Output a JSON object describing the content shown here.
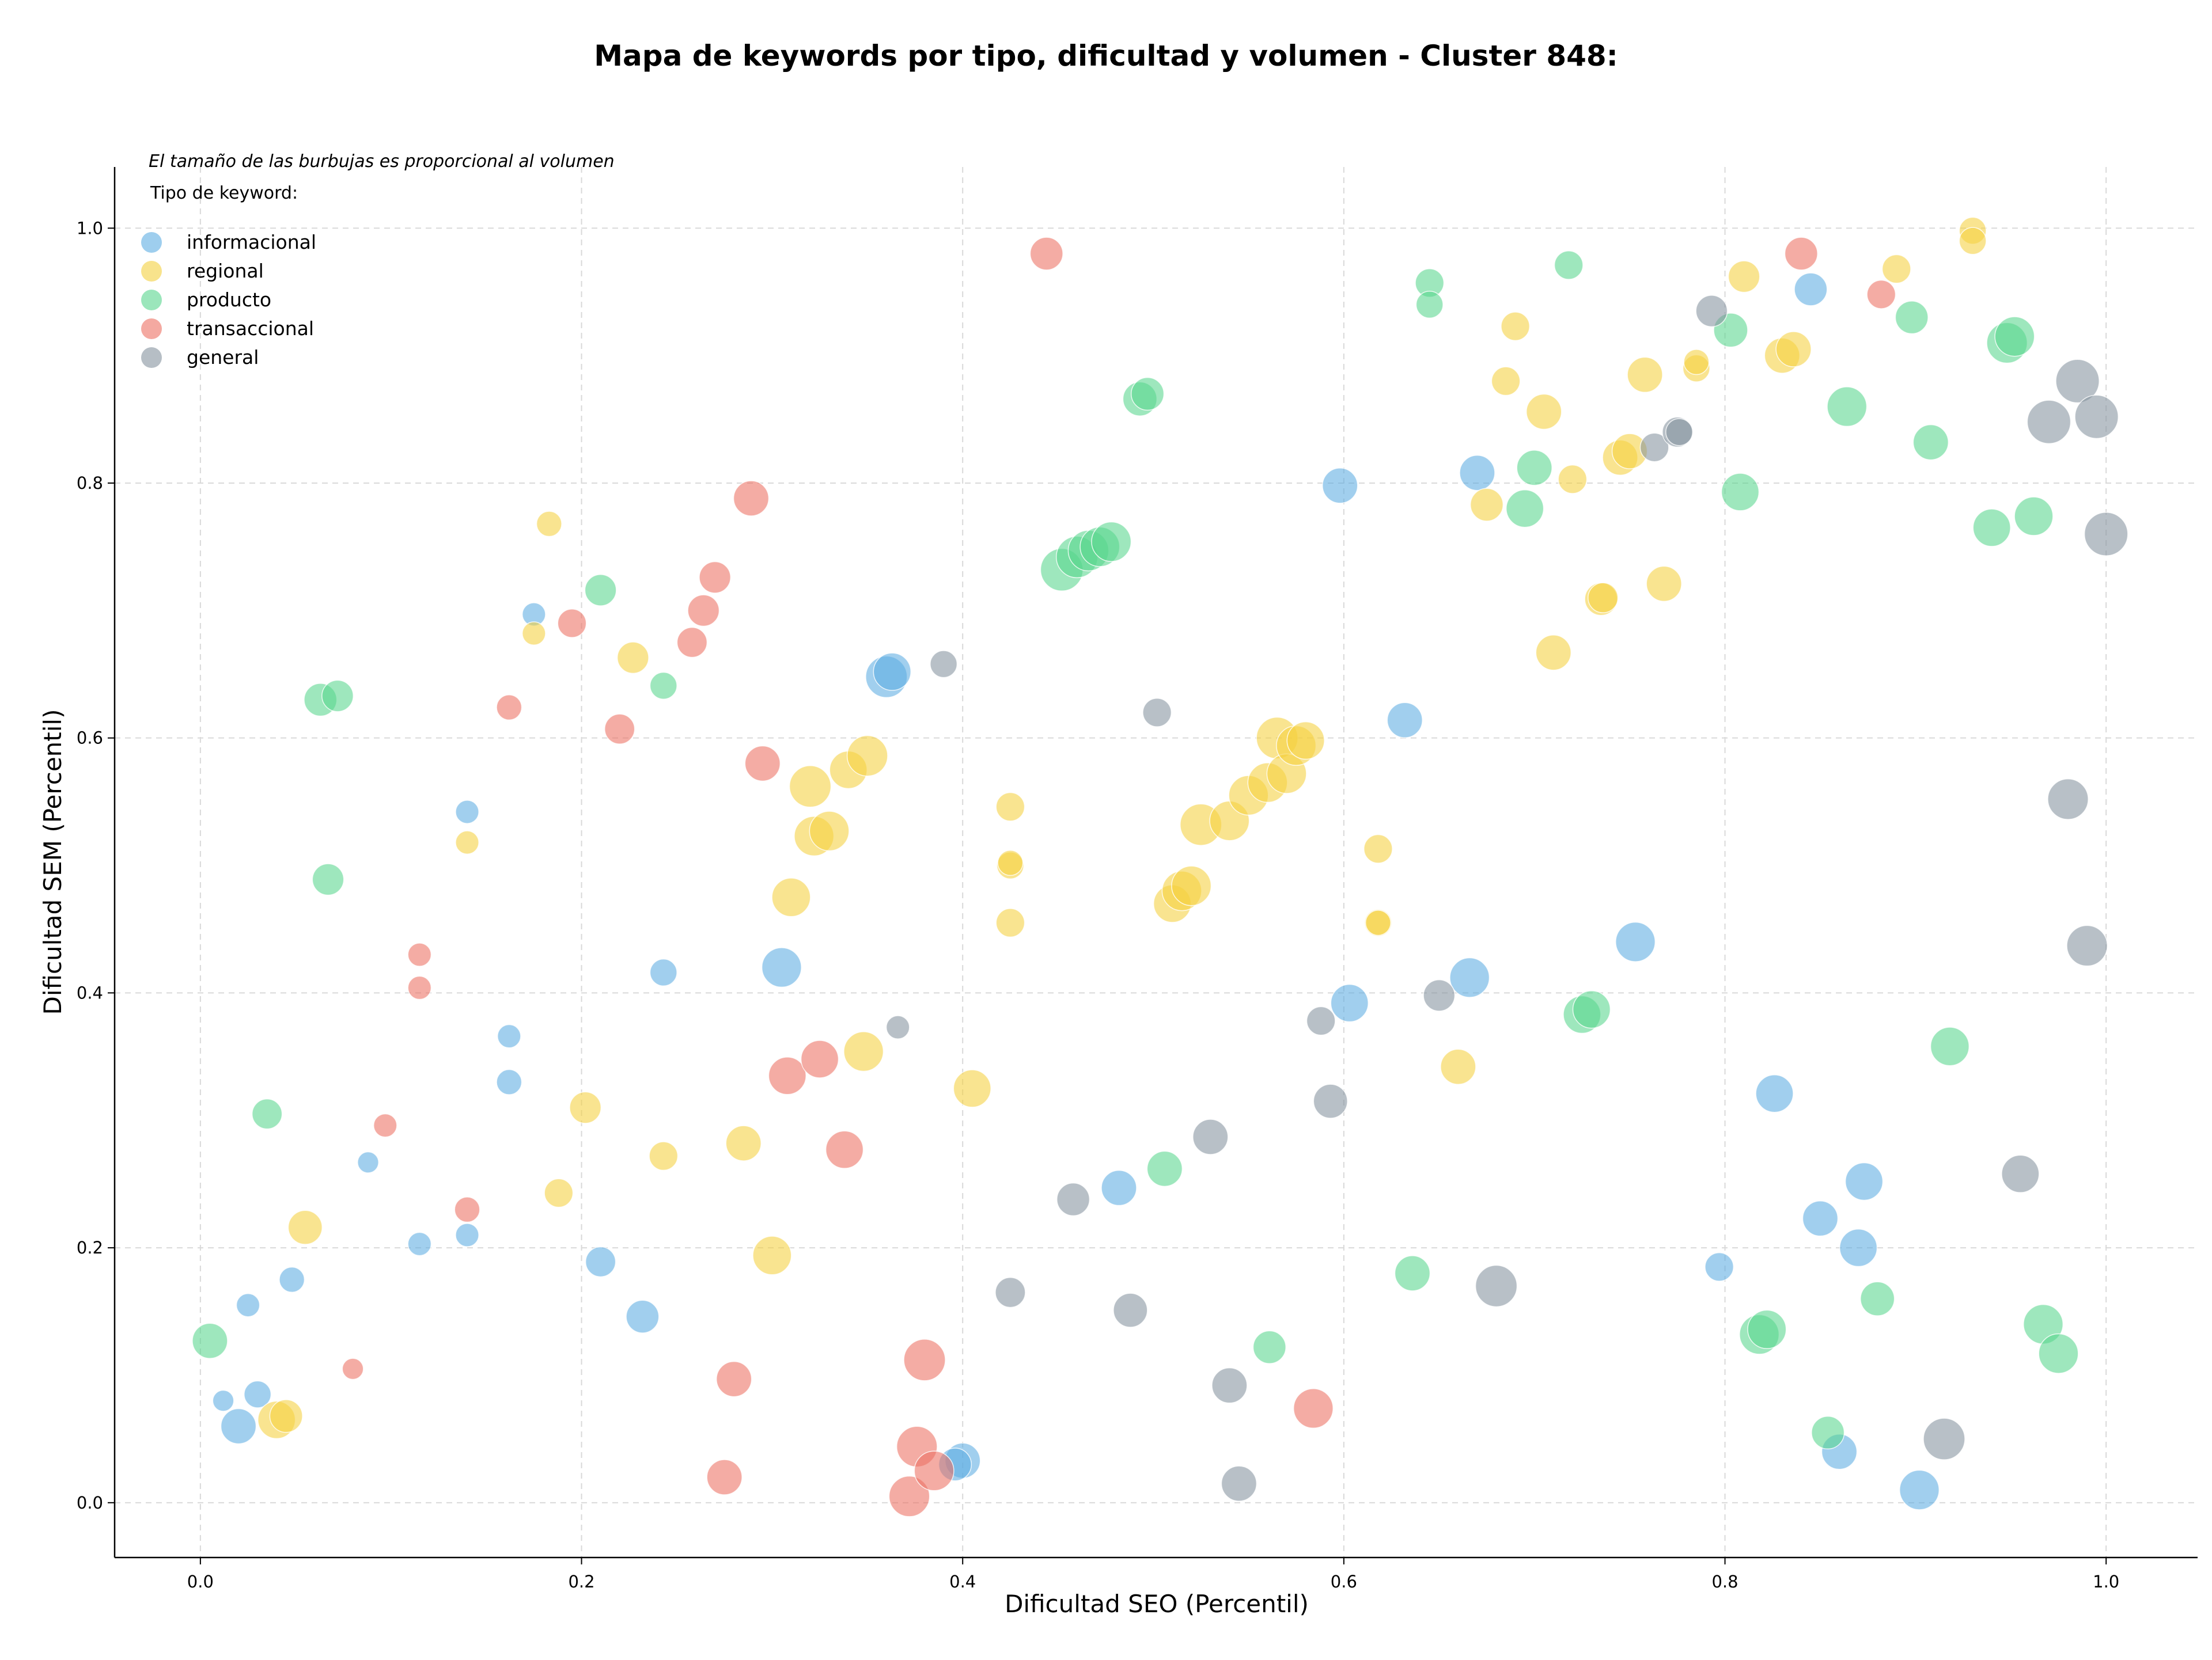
{
  "chart_data": {
    "type": "scatter",
    "title": "Mapa de keywords por tipo, dificultad y volumen - Cluster 848:",
    "subtitle": "",
    "xlabel": "Dificultad SEO (Percentil)",
    "ylabel": "Dificultad SEM (Percentil)",
    "xlim": [
      -0.045,
      1.048
    ],
    "ylim": [
      -0.043,
      1.048
    ],
    "xticks": [
      "0.0",
      "0.2",
      "0.4",
      "0.6",
      "0.8",
      "1.0"
    ],
    "yticks": [
      "0.0",
      "0.2",
      "0.4",
      "0.6",
      "0.8",
      "1.0"
    ],
    "grid": true,
    "annotation": "El tamaño de las burbujas es proporcional al volumen",
    "legend": {
      "title": "Tipo de keyword:",
      "position": "top-left"
    },
    "series": [
      {
        "name": "informacional",
        "color": "#5DADE2",
        "points": [
          [
            0.02,
            0.06,
            6
          ],
          [
            0.03,
            0.085,
            3
          ],
          [
            0.012,
            0.08,
            1.5
          ],
          [
            0.025,
            0.155,
            2
          ],
          [
            0.048,
            0.175,
            2.5
          ],
          [
            0.088,
            0.267,
            1.5
          ],
          [
            0.115,
            0.203,
            2
          ],
          [
            0.14,
            0.21,
            2
          ],
          [
            0.14,
            0.542,
            2
          ],
          [
            0.162,
            0.33,
            2.5
          ],
          [
            0.162,
            0.366,
            2
          ],
          [
            0.175,
            0.697,
            2
          ],
          [
            0.21,
            0.189,
            4
          ],
          [
            0.232,
            0.146,
            5
          ],
          [
            0.243,
            0.416,
            3
          ],
          [
            0.305,
            0.42,
            8
          ],
          [
            0.36,
            0.648,
            9
          ],
          [
            0.363,
            0.652,
            7
          ],
          [
            0.4,
            0.033,
            6
          ],
          [
            0.396,
            0.03,
            5
          ],
          [
            0.482,
            0.247,
            6
          ],
          [
            0.598,
            0.798,
            6
          ],
          [
            0.603,
            0.392,
            7
          ],
          [
            0.632,
            0.614,
            6
          ],
          [
            0.666,
            0.412,
            8
          ],
          [
            0.67,
            0.808,
            6
          ],
          [
            0.753,
            0.44,
            8
          ],
          [
            0.797,
            0.185,
            3.5
          ],
          [
            0.826,
            0.321,
            7
          ],
          [
            0.845,
            0.952,
            5
          ],
          [
            0.85,
            0.223,
            6
          ],
          [
            0.86,
            0.04,
            6
          ],
          [
            0.87,
            0.2,
            7
          ],
          [
            0.873,
            0.252,
            7
          ],
          [
            0.902,
            0.01,
            8
          ]
        ]
      },
      {
        "name": "regional",
        "color": "#F4D03F",
        "points": [
          [
            0.04,
            0.065,
            7
          ],
          [
            0.045,
            0.068,
            5
          ],
          [
            0.055,
            0.216,
            5.5
          ],
          [
            0.14,
            0.518,
            2
          ],
          [
            0.175,
            0.682,
            2
          ],
          [
            0.183,
            0.768,
            2.5
          ],
          [
            0.188,
            0.243,
            3.5
          ],
          [
            0.202,
            0.31,
            4.5
          ],
          [
            0.227,
            0.663,
            4.5
          ],
          [
            0.243,
            0.272,
            3.5
          ],
          [
            0.285,
            0.282,
            6
          ],
          [
            0.3,
            0.194,
            7.5
          ],
          [
            0.31,
            0.475,
            7.5
          ],
          [
            0.32,
            0.562,
            9
          ],
          [
            0.322,
            0.523,
            8
          ],
          [
            0.33,
            0.527,
            8
          ],
          [
            0.34,
            0.575,
            7
          ],
          [
            0.35,
            0.586,
            8.5
          ],
          [
            0.348,
            0.354,
            8
          ],
          [
            0.405,
            0.325,
            7
          ],
          [
            0.425,
            0.546,
            3.5
          ],
          [
            0.425,
            0.455,
            3.5
          ],
          [
            0.425,
            0.5,
            3
          ],
          [
            0.425,
            0.502,
            2.5
          ],
          [
            0.51,
            0.47,
            7
          ],
          [
            0.515,
            0.48,
            8
          ],
          [
            0.52,
            0.484,
            8
          ],
          [
            0.525,
            0.532,
            9
          ],
          [
            0.54,
            0.535,
            8
          ],
          [
            0.55,
            0.555,
            8
          ],
          [
            0.56,
            0.565,
            8
          ],
          [
            0.565,
            0.6,
            9
          ],
          [
            0.57,
            0.572,
            8
          ],
          [
            0.575,
            0.594,
            8
          ],
          [
            0.58,
            0.598,
            7
          ],
          [
            0.618,
            0.513,
            3.5
          ],
          [
            0.618,
            0.455,
            3
          ],
          [
            0.618,
            0.455,
            2.5
          ],
          [
            0.66,
            0.342,
            6
          ],
          [
            0.675,
            0.783,
            5
          ],
          [
            0.685,
            0.88,
            3.5
          ],
          [
            0.69,
            0.923,
            3.5
          ],
          [
            0.705,
            0.856,
            6
          ],
          [
            0.71,
            0.667,
            6
          ],
          [
            0.72,
            0.803,
            3.5
          ],
          [
            0.735,
            0.709,
            5
          ],
          [
            0.736,
            0.71,
            4
          ],
          [
            0.745,
            0.82,
            6
          ],
          [
            0.75,
            0.825,
            6
          ],
          [
            0.758,
            0.885,
            6
          ],
          [
            0.768,
            0.721,
            6
          ],
          [
            0.785,
            0.89,
            3
          ],
          [
            0.785,
            0.895,
            2.5
          ],
          [
            0.81,
            0.962,
            4.5
          ],
          [
            0.83,
            0.9,
            6
          ],
          [
            0.836,
            0.905,
            6
          ],
          [
            0.89,
            0.968,
            3.5
          ],
          [
            0.93,
            0.998,
            3
          ],
          [
            0.93,
            0.99,
            3
          ]
        ]
      },
      {
        "name": "producto",
        "color": "#58D68D",
        "points": [
          [
            0.005,
            0.127,
            6
          ],
          [
            0.035,
            0.305,
            4
          ],
          [
            0.063,
            0.63,
            5
          ],
          [
            0.072,
            0.633,
            4.5
          ],
          [
            0.067,
            0.489,
            4.5
          ],
          [
            0.21,
            0.716,
            4.5
          ],
          [
            0.243,
            0.641,
            3
          ],
          [
            0.452,
            0.732,
            9.5
          ],
          [
            0.46,
            0.742,
            9
          ],
          [
            0.466,
            0.747,
            8.5
          ],
          [
            0.472,
            0.75,
            8
          ],
          [
            0.478,
            0.754,
            8
          ],
          [
            0.493,
            0.866,
            5.5
          ],
          [
            0.497,
            0.87,
            5
          ],
          [
            0.506,
            0.262,
            6
          ],
          [
            0.561,
            0.122,
            5
          ],
          [
            0.636,
            0.18,
            6
          ],
          [
            0.645,
            0.957,
            3.5
          ],
          [
            0.645,
            0.94,
            3
          ],
          [
            0.695,
            0.78,
            7
          ],
          [
            0.7,
            0.812,
            6
          ],
          [
            0.718,
            0.971,
            3.5
          ],
          [
            0.725,
            0.383,
            7
          ],
          [
            0.73,
            0.387,
            7
          ],
          [
            0.808,
            0.793,
            7
          ],
          [
            0.803,
            0.92,
            5.5
          ],
          [
            0.818,
            0.132,
            8
          ],
          [
            0.822,
            0.136,
            7.5
          ],
          [
            0.854,
            0.055,
            5
          ],
          [
            0.864,
            0.86,
            8
          ],
          [
            0.88,
            0.16,
            5.5
          ],
          [
            0.898,
            0.93,
            5
          ],
          [
            0.908,
            0.832,
            6
          ],
          [
            0.918,
            0.358,
            7.5
          ],
          [
            0.94,
            0.765,
            7
          ],
          [
            0.948,
            0.91,
            8.5
          ],
          [
            0.952,
            0.915,
            8
          ],
          [
            0.962,
            0.774,
            7.5
          ],
          [
            0.967,
            0.14,
            8
          ],
          [
            0.975,
            0.117,
            8
          ]
        ]
      },
      {
        "name": "transaccional",
        "color": "#EC7063",
        "points": [
          [
            0.08,
            0.105,
            1.5
          ],
          [
            0.097,
            0.296,
            2
          ],
          [
            0.115,
            0.404,
            2
          ],
          [
            0.115,
            0.43,
            2
          ],
          [
            0.14,
            0.23,
            2.5
          ],
          [
            0.162,
            0.624,
            2.5
          ],
          [
            0.195,
            0.69,
            3.5
          ],
          [
            0.22,
            0.607,
            4
          ],
          [
            0.258,
            0.675,
            4
          ],
          [
            0.264,
            0.7,
            4.5
          ],
          [
            0.27,
            0.726,
            4.5
          ],
          [
            0.275,
            0.02,
            6
          ],
          [
            0.28,
            0.097,
            6
          ],
          [
            0.289,
            0.788,
            6
          ],
          [
            0.295,
            0.58,
            6
          ],
          [
            0.308,
            0.335,
            7
          ],
          [
            0.325,
            0.348,
            7
          ],
          [
            0.338,
            0.277,
            7
          ],
          [
            0.372,
            0.005,
            8.5
          ],
          [
            0.376,
            0.044,
            8.5
          ],
          [
            0.38,
            0.112,
            9
          ],
          [
            0.385,
            0.025,
            8
          ],
          [
            0.444,
            0.98,
            5
          ],
          [
            0.584,
            0.074,
            8
          ],
          [
            0.84,
            0.98,
            5
          ],
          [
            0.882,
            0.948,
            3.5
          ]
        ]
      },
      {
        "name": "general",
        "color": "#85929E",
        "points": [
          [
            0.366,
            0.373,
            2
          ],
          [
            0.39,
            0.658,
            3
          ],
          [
            0.425,
            0.165,
            4
          ],
          [
            0.458,
            0.238,
            5
          ],
          [
            0.488,
            0.151,
            5.5
          ],
          [
            0.502,
            0.62,
            3.5
          ],
          [
            0.53,
            0.287,
            6
          ],
          [
            0.54,
            0.092,
            6
          ],
          [
            0.545,
            0.015,
            6
          ],
          [
            0.588,
            0.378,
            3.5
          ],
          [
            0.593,
            0.315,
            5.5
          ],
          [
            0.65,
            0.398,
            4.5
          ],
          [
            0.68,
            0.17,
            9
          ],
          [
            0.763,
            0.828,
            3.5
          ],
          [
            0.775,
            0.84,
            4
          ],
          [
            0.776,
            0.84,
            3
          ],
          [
            0.793,
            0.935,
            4.5
          ],
          [
            0.915,
            0.05,
            9
          ],
          [
            0.955,
            0.258,
            7
          ],
          [
            0.97,
            0.848,
            10
          ],
          [
            0.98,
            0.552,
            8.5
          ],
          [
            0.985,
            0.88,
            10
          ],
          [
            0.99,
            0.437,
            8.5
          ],
          [
            0.995,
            0.852,
            10
          ],
          [
            1.0,
            0.76,
            10
          ]
        ]
      }
    ]
  }
}
